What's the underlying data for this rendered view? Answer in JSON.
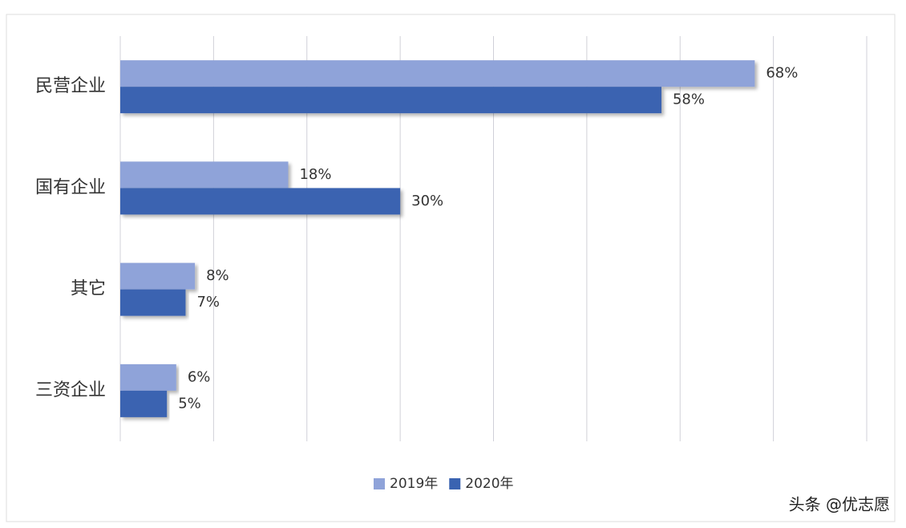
{
  "chart_data": {
    "type": "hbar",
    "categories": [
      "民营企业",
      "国有企业",
      "其它",
      "三资企业"
    ],
    "series": [
      {
        "name": "2019年",
        "color": "#8fa3d9",
        "values": [
          68,
          18,
          8,
          6
        ],
        "value_labels": [
          "68%",
          "18%",
          "8%",
          "6%"
        ]
      },
      {
        "name": "2020年",
        "color": "#3a63b1",
        "values": [
          58,
          30,
          7,
          5
        ],
        "value_labels": [
          "58%",
          "30%",
          "7%",
          "5%"
        ]
      }
    ],
    "xlim": [
      0,
      80
    ],
    "xticks": [
      0,
      10,
      20,
      30,
      40,
      50,
      60,
      70,
      80
    ],
    "grid": true,
    "legend": "bottom"
  },
  "credit": "头条 @优志愿"
}
